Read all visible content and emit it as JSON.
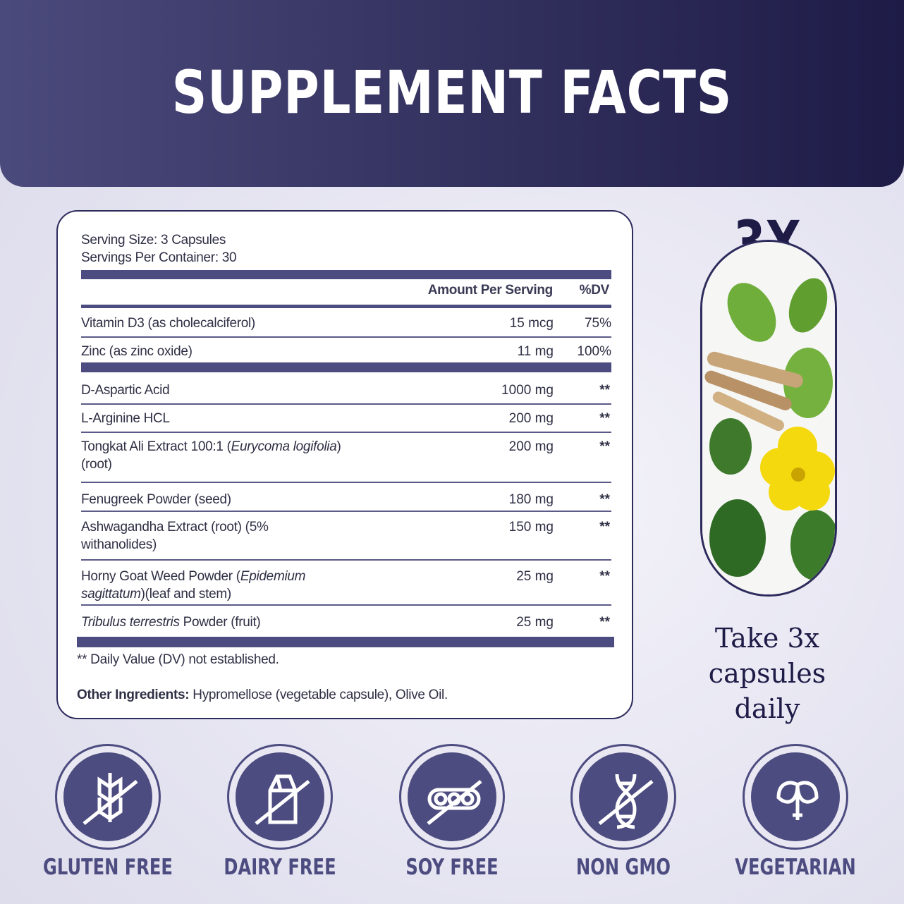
{
  "header": {
    "title": "SUPPLEMENT FACTS"
  },
  "facts": {
    "serving_size": "Serving Size: 3 Capsules",
    "servings_per_container": "Servings Per Container: 30",
    "col_amount": "Amount Per Serving",
    "col_dv": "%DV",
    "vitamins": [
      {
        "name": "Vitamin D3 (as cholecalciferol)",
        "amount": "15 mcg",
        "dv": "75%"
      },
      {
        "name": "Zinc (as zinc oxide)",
        "amount": "11 mg",
        "dv": "100%"
      }
    ],
    "ingredients": [
      {
        "name": "D-Aspartic Acid",
        "amount": "1000 mg",
        "dv": "**"
      },
      {
        "name": "L-Arginine HCL",
        "amount": "200 mg",
        "dv": "**"
      },
      {
        "name": "Tongkat Ali Extract 100:1 (",
        "italic": "Eurycoma logifolia",
        "after": ") (root)",
        "amount": "200 mg",
        "dv": "**"
      },
      {
        "name": "Fenugreek Powder (seed)",
        "amount": "180 mg",
        "dv": "**"
      },
      {
        "name": "Ashwagandha Extract (root) (5% withanolides)",
        "amount": "150 mg",
        "dv": "**"
      },
      {
        "name": "Horny Goat Weed Powder (",
        "italic": "Epidemium sagittatum",
        "after": ")(leaf and stem)",
        "amount": "25 mg",
        "dv": "**"
      },
      {
        "name": "",
        "italic": "Tribulus terrestris",
        "after": " Powder (fruit)",
        "amount": "25 mg",
        "dv": "**"
      }
    ],
    "footnote": "** Daily Value (DV) not established.",
    "other_label": "Other Ingredients:",
    "other_text": " Hypromellose (vegetable capsule), Olive Oil."
  },
  "side": {
    "multiplier": "3X",
    "instruction": "Take 3x capsules daily"
  },
  "badges": [
    {
      "label": "GLUTEN FREE",
      "icon": "wheat-crossed-icon"
    },
    {
      "label": "DAIRY FREE",
      "icon": "milk-carton-crossed-icon"
    },
    {
      "label": "SOY FREE",
      "icon": "soybean-crossed-icon"
    },
    {
      "label": "NON GMO",
      "icon": "dna-crossed-icon"
    },
    {
      "label": "VEGETARIAN",
      "icon": "leaf-icon"
    }
  ],
  "colors": {
    "brand": "#4d4c80",
    "dark": "#1e1b47"
  }
}
